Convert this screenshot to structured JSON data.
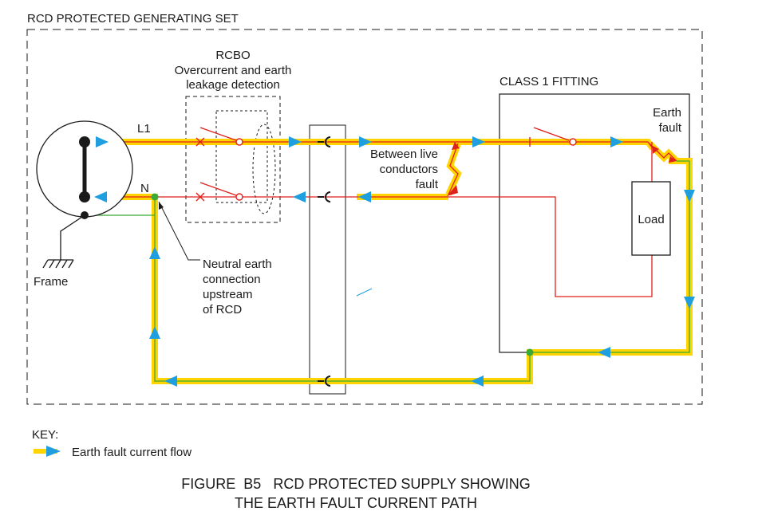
{
  "frame_title": "RCD PROTECTED GENERATING SET",
  "rcbo": {
    "title": "RCBO",
    "line1": "Overcurrent and earth",
    "line2": "leakage detection"
  },
  "fitting": {
    "title": "CLASS 1 FITTING"
  },
  "labels": {
    "l1": "L1",
    "n": "N",
    "frame": "Frame",
    "earth_fault_1": "Earth",
    "earth_fault_2": "fault",
    "load": "Load",
    "live_fault_1": "Between live",
    "live_fault_2": "conductors",
    "live_fault_3": "fault",
    "neutral_1": "Neutral earth",
    "neutral_2": "connection",
    "neutral_3": "upstream",
    "neutral_4": "of RCD"
  },
  "key": {
    "title": "KEY:",
    "item": "Earth fault current flow"
  },
  "caption": {
    "line1": "FIGURE  B5   RCD PROTECTED SUPPLY SHOWING",
    "line2": "THE EARTH FAULT CURRENT PATH"
  },
  "colors": {
    "path": "#ffd400",
    "wire": "#e0201b",
    "earth": "#3aa935",
    "arrow": "#1f9fe0",
    "line": "#1a1a1a"
  }
}
